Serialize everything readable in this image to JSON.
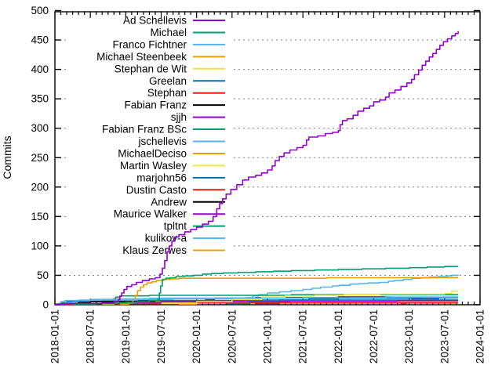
{
  "chart_data": {
    "type": "line",
    "title": "",
    "xlabel": "",
    "ylabel": "Commits",
    "ylim": [
      0,
      500
    ],
    "y_tick_step": 50,
    "y_ticks": [
      0,
      50,
      100,
      150,
      200,
      250,
      300,
      350,
      400,
      450,
      500
    ],
    "x_unit": "months since 2018-01-01",
    "xlim_months": [
      0,
      72
    ],
    "x_major_tick_every_months": 6,
    "x_minor_tick_every_months": 1,
    "x_tick_labels": [
      "2018-01-01",
      "2018-07-01",
      "2019-01-01",
      "2019-07-01",
      "2020-01-01",
      "2020-07-01",
      "2021-01-01",
      "2021-07-01",
      "2022-01-01",
      "2022-07-01",
      "2023-01-01",
      "2023-07-01",
      "2024-01-01"
    ],
    "grid": "dotted horizontal gridlines at every 50 commits",
    "legend_position": "inside top-left, right-aligned labels with line swatches",
    "line_style": "step-after cumulative lines",
    "palette": [
      "#9400d3",
      "#009e73",
      "#56b4e9",
      "#e69f00",
      "#f0e442",
      "#0072b2",
      "#e51e10",
      "#000000"
    ],
    "series": [
      {
        "name": "Ad Schellevis",
        "color": "#9400d3",
        "points": [
          [
            0,
            1
          ],
          [
            2,
            2
          ],
          [
            5,
            2
          ],
          [
            8,
            3
          ],
          [
            10,
            5
          ],
          [
            10.8,
            9
          ],
          [
            11,
            14
          ],
          [
            11.3,
            20
          ],
          [
            11.7,
            26
          ],
          [
            12.2,
            31
          ],
          [
            13,
            34
          ],
          [
            13.8,
            38
          ],
          [
            14.8,
            41
          ],
          [
            16,
            44
          ],
          [
            17,
            46
          ],
          [
            17.8,
            52
          ],
          [
            18.2,
            62
          ],
          [
            18.6,
            75
          ],
          [
            19,
            90
          ],
          [
            19.4,
            100
          ],
          [
            19.8,
            108
          ],
          [
            20.3,
            115
          ],
          [
            21,
            119
          ],
          [
            22,
            124
          ],
          [
            23,
            128
          ],
          [
            24,
            132
          ],
          [
            25,
            137
          ],
          [
            26,
            142
          ],
          [
            26.8,
            150
          ],
          [
            27.4,
            163
          ],
          [
            27.9,
            172
          ],
          [
            28.4,
            180
          ],
          [
            29,
            188
          ],
          [
            29.8,
            196
          ],
          [
            30.8,
            204
          ],
          [
            31.8,
            212
          ],
          [
            32.8,
            217
          ],
          [
            34,
            220
          ],
          [
            35,
            224
          ],
          [
            36,
            229
          ],
          [
            36.8,
            236
          ],
          [
            37.3,
            245
          ],
          [
            38,
            252
          ],
          [
            38.8,
            258
          ],
          [
            39.8,
            263
          ],
          [
            41,
            267
          ],
          [
            42,
            271
          ],
          [
            42.6,
            280
          ],
          [
            43,
            285
          ],
          [
            44.5,
            287
          ],
          [
            45.8,
            291
          ],
          [
            47,
            293
          ],
          [
            48,
            296
          ],
          [
            48.3,
            306
          ],
          [
            48.7,
            313
          ],
          [
            49.5,
            316
          ],
          [
            50.5,
            322
          ],
          [
            51.3,
            329
          ],
          [
            52.3,
            334
          ],
          [
            53.3,
            338
          ],
          [
            54,
            345
          ],
          [
            55,
            348
          ],
          [
            56,
            353
          ],
          [
            56.6,
            360
          ],
          [
            57.6,
            365
          ],
          [
            58.6,
            371
          ],
          [
            59.6,
            377
          ],
          [
            60.4,
            383
          ],
          [
            60.9,
            391
          ],
          [
            61.6,
            399
          ],
          [
            62.2,
            407
          ],
          [
            62.8,
            414
          ],
          [
            63.4,
            421
          ],
          [
            64,
            427
          ],
          [
            64.6,
            434
          ],
          [
            65.2,
            441
          ],
          [
            65.8,
            447
          ],
          [
            66.5,
            452
          ],
          [
            67.2,
            457
          ],
          [
            67.8,
            461
          ],
          [
            68.3,
            465
          ]
        ]
      },
      {
        "name": "Michael",
        "color": "#009e73",
        "points": [
          [
            3,
            1
          ],
          [
            7,
            2
          ],
          [
            10,
            3
          ],
          [
            12,
            4
          ],
          [
            14,
            5
          ],
          [
            16,
            7
          ],
          [
            17.4,
            9
          ],
          [
            17.7,
            20
          ],
          [
            17.9,
            32
          ],
          [
            18.2,
            43
          ],
          [
            18.8,
            45
          ],
          [
            19.5,
            46
          ],
          [
            20.5,
            48
          ],
          [
            22,
            49
          ],
          [
            23.5,
            50
          ],
          [
            25,
            52
          ],
          [
            26.5,
            53
          ],
          [
            28.5,
            54
          ],
          [
            31,
            55
          ],
          [
            34,
            56
          ],
          [
            37,
            57
          ],
          [
            40,
            58
          ],
          [
            44,
            59
          ],
          [
            48,
            60
          ],
          [
            52,
            61
          ],
          [
            56,
            62
          ],
          [
            60,
            63
          ],
          [
            63,
            64
          ],
          [
            66,
            65
          ],
          [
            68.3,
            65
          ]
        ]
      },
      {
        "name": "Franco Fichtner",
        "color": "#56b4e9",
        "points": [
          [
            0.5,
            2
          ],
          [
            1,
            5
          ],
          [
            1.7,
            7
          ],
          [
            4,
            8
          ],
          [
            10,
            8
          ],
          [
            14,
            9
          ],
          [
            20,
            10
          ],
          [
            30,
            11
          ],
          [
            42,
            12
          ],
          [
            56,
            13
          ],
          [
            68.3,
            13
          ]
        ]
      },
      {
        "name": "Michael Steenbeek",
        "color": "#e69f00",
        "points": [
          [
            11,
            1
          ],
          [
            12.5,
            3
          ],
          [
            13.2,
            8
          ],
          [
            13.6,
            16
          ],
          [
            14,
            24
          ],
          [
            14.5,
            30
          ],
          [
            15,
            34
          ],
          [
            15.6,
            37
          ],
          [
            16.4,
            39
          ],
          [
            17.2,
            41
          ],
          [
            18.4,
            43
          ],
          [
            19.6,
            44
          ],
          [
            21,
            45
          ],
          [
            32,
            45
          ],
          [
            46,
            46
          ],
          [
            68.3,
            46
          ]
        ]
      },
      {
        "name": "Stephan de Wit",
        "color": "#f0e442",
        "points": [
          [
            18,
            2
          ],
          [
            24,
            5
          ],
          [
            30,
            9
          ],
          [
            35,
            13
          ],
          [
            39,
            15
          ],
          [
            44,
            16
          ],
          [
            49,
            17
          ],
          [
            55,
            18
          ],
          [
            62,
            18
          ],
          [
            66,
            19
          ],
          [
            67.2,
            23
          ],
          [
            68.3,
            23
          ]
        ]
      },
      {
        "name": "Greelan",
        "color": "#0072b2",
        "points": [
          [
            29,
            2
          ],
          [
            33,
            5
          ],
          [
            38,
            8
          ],
          [
            43,
            10
          ],
          [
            48,
            11
          ],
          [
            56,
            11
          ],
          [
            62,
            12
          ],
          [
            68.3,
            12
          ]
        ]
      },
      {
        "name": "Stephan",
        "color": "#e51e10",
        "points": [
          [
            1,
            1
          ],
          [
            4,
            2
          ],
          [
            10,
            2
          ],
          [
            24,
            3
          ],
          [
            68.3,
            3
          ]
        ]
      },
      {
        "name": "Fabian Franz",
        "color": "#000000",
        "points": [
          [
            3.5,
            2
          ],
          [
            4,
            4
          ],
          [
            6,
            5
          ],
          [
            10,
            5
          ],
          [
            14,
            6
          ],
          [
            17,
            6
          ]
        ]
      },
      {
        "name": "sjjh",
        "color": "#9400d3",
        "points": [
          [
            12,
            2
          ],
          [
            14,
            4
          ],
          [
            18,
            5
          ],
          [
            28,
            6
          ],
          [
            44,
            6
          ],
          [
            58,
            7
          ],
          [
            68.3,
            7
          ]
        ]
      },
      {
        "name": "Fabian Franz BSc",
        "color": "#009e73",
        "points": [
          [
            9.3,
            3
          ],
          [
            9.8,
            9
          ],
          [
            10.3,
            13
          ],
          [
            11,
            15
          ],
          [
            16,
            16
          ],
          [
            28,
            16
          ],
          [
            40,
            17
          ],
          [
            68.3,
            17
          ]
        ]
      },
      {
        "name": "jschellevis",
        "color": "#56b4e9",
        "points": [
          [
            2,
            3
          ],
          [
            4,
            7
          ],
          [
            6,
            9
          ],
          [
            10,
            10
          ],
          [
            16,
            11
          ],
          [
            30,
            11
          ],
          [
            50,
            12
          ],
          [
            68.3,
            12
          ]
        ]
      },
      {
        "name": "MichaelDeciso",
        "color": "#e69f00",
        "points": [
          [
            1.5,
            2
          ],
          [
            3,
            4
          ],
          [
            6,
            5
          ],
          [
            12,
            5
          ],
          [
            30,
            6
          ],
          [
            68.3,
            6
          ]
        ]
      },
      {
        "name": "Martin Wasley",
        "color": "#f0e442",
        "points": [
          [
            8,
            1
          ],
          [
            10,
            2
          ],
          [
            14,
            3
          ],
          [
            24,
            3
          ],
          [
            40,
            4
          ],
          [
            68.3,
            4
          ]
        ]
      },
      {
        "name": "marjohn56",
        "color": "#0072b2",
        "points": [
          [
            0.3,
            1
          ],
          [
            1,
            3
          ],
          [
            2,
            5
          ],
          [
            4,
            6
          ],
          [
            8,
            7
          ],
          [
            16,
            7
          ],
          [
            32,
            8
          ],
          [
            68.3,
            8
          ]
        ]
      },
      {
        "name": "Dustin Casto",
        "color": "#e51e10",
        "points": [
          [
            58.5,
            2
          ],
          [
            59.5,
            6
          ],
          [
            60.5,
            10
          ],
          [
            62,
            10
          ],
          [
            64,
            11
          ]
        ]
      },
      {
        "name": "Andrew",
        "color": "#000000",
        "points": [
          [
            24,
            3
          ],
          [
            25.5,
            8
          ],
          [
            27,
            11
          ],
          [
            34,
            12
          ],
          [
            42,
            12
          ],
          [
            48,
            13
          ],
          [
            57,
            13
          ]
        ]
      },
      {
        "name": "Maurice Walker",
        "color": "#9400d3",
        "points": [
          [
            34,
            2
          ],
          [
            38,
            4
          ],
          [
            46,
            5
          ],
          [
            54,
            6
          ],
          [
            62,
            6
          ],
          [
            63.6,
            10
          ],
          [
            65,
            11
          ]
        ]
      },
      {
        "name": "tpltnt",
        "color": "#009e73",
        "points": [
          [
            13,
            2
          ],
          [
            14,
            7
          ],
          [
            15,
            10
          ],
          [
            18,
            11
          ],
          [
            30,
            11
          ],
          [
            44,
            12
          ],
          [
            68.3,
            12
          ]
        ]
      },
      {
        "name": "kulikov-a",
        "color": "#56b4e9",
        "points": [
          [
            30,
            2
          ],
          [
            31.5,
            8
          ],
          [
            32.5,
            12
          ],
          [
            33.5,
            15
          ],
          [
            34.5,
            17
          ],
          [
            36,
            20
          ],
          [
            38,
            22
          ],
          [
            40,
            24
          ],
          [
            42,
            26
          ],
          [
            43.5,
            28
          ],
          [
            45,
            30
          ],
          [
            47,
            32
          ],
          [
            48.2,
            33
          ],
          [
            50,
            35
          ],
          [
            51.5,
            36
          ],
          [
            53,
            37
          ],
          [
            55,
            38
          ],
          [
            56.5,
            40
          ],
          [
            57.5,
            41
          ],
          [
            59,
            43
          ],
          [
            60.5,
            45
          ],
          [
            62,
            46
          ],
          [
            63.5,
            47
          ],
          [
            65,
            48
          ],
          [
            66.5,
            49
          ],
          [
            67.2,
            50
          ],
          [
            68.3,
            51
          ]
        ]
      },
      {
        "name": "Klaus Zerwes",
        "color": "#e69f00",
        "points": [
          [
            21,
            1
          ],
          [
            24,
            3
          ],
          [
            30,
            4
          ],
          [
            44,
            5
          ],
          [
            60,
            5
          ],
          [
            68.3,
            5
          ]
        ]
      }
    ]
  },
  "style": {
    "background": "#ffffff",
    "axis_color": "#000000",
    "grid_color": "#808080",
    "text_color": "#000000"
  }
}
